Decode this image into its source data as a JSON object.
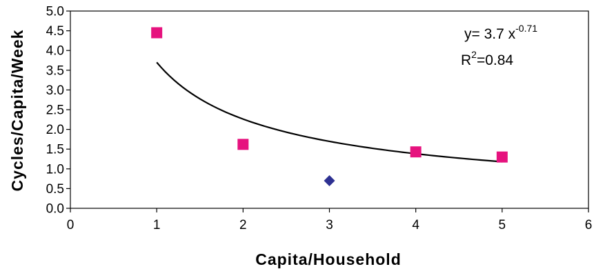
{
  "chart_data": {
    "type": "scatter",
    "xlabel": "Capita/Household",
    "ylabel": "Cycles/Capita/Week",
    "xlim": [
      0,
      6
    ],
    "ylim": [
      0.0,
      5.0
    ],
    "x_ticks": [
      "0",
      "1",
      "2",
      "3",
      "4",
      "5",
      "6"
    ],
    "y_ticks": [
      "0.0",
      "0.5",
      "1.0",
      "1.5",
      "2.0",
      "2.5",
      "3.0",
      "3.5",
      "4.0",
      "4.5",
      "5.0"
    ],
    "grid": false,
    "series": [
      {
        "marker": "square",
        "color": "#e6127e",
        "points": [
          {
            "x": 1,
            "y": 4.45
          },
          {
            "x": 2,
            "y": 1.62
          },
          {
            "x": 4,
            "y": 1.43
          },
          {
            "x": 5,
            "y": 1.3
          }
        ]
      },
      {
        "marker": "diamond",
        "color": "#2e3192",
        "points": [
          {
            "x": 3,
            "y": 0.7
          }
        ]
      }
    ],
    "trendline": {
      "a": 3.7,
      "b": -0.71,
      "x_from": 1,
      "x_to": 5,
      "color": "#000000"
    },
    "annotation": {
      "equation_prefix": "y=  3.7  x",
      "equation_exponent": "-0.71",
      "r2_base": "R",
      "r2_superscript": "2",
      "r2_value": "=0.84"
    }
  }
}
